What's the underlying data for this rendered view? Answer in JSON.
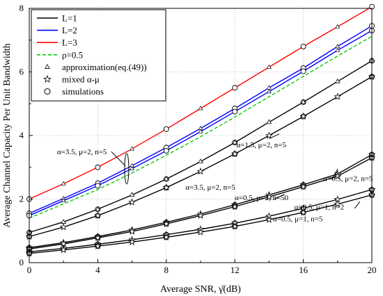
{
  "chart_data": {
    "type": "line",
    "xlabel": "Average SNR, γ̄(dB)",
    "ylabel": "Average Channel Capacity Per Unit Bandwidth",
    "xlim": [
      0,
      20
    ],
    "ylim": [
      0,
      8
    ],
    "xticks": [
      0,
      4,
      8,
      12,
      16,
      20
    ],
    "yticks": [
      0,
      2,
      4,
      6,
      8
    ],
    "grid": true,
    "legend_position": "top-left",
    "legend": [
      {
        "label": "L=1",
        "style": "line",
        "color": "#000000"
      },
      {
        "label": "L=2",
        "style": "line",
        "color": "#0000ff"
      },
      {
        "label": "L=3",
        "style": "line",
        "color": "#ff0000"
      },
      {
        "label": "ρ=0.5",
        "style": "dashed",
        "color": "#00cc00"
      },
      {
        "label": "approximation(eq.(49))",
        "style": "triangle",
        "color": "#000000"
      },
      {
        "label": "mixed α-μ",
        "style": "star",
        "color": "#000000"
      },
      {
        "label": "simulations",
        "style": "circle",
        "color": "#000000"
      }
    ],
    "x": [
      0,
      2,
      4,
      6,
      8,
      10,
      12,
      14,
      16,
      18,
      20
    ],
    "series": [
      {
        "group": "α=3.5, μ=2, n=5",
        "L": 3,
        "color": "#ff0000",
        "dash": false,
        "y": [
          2.0,
          2.48,
          3.0,
          3.58,
          4.2,
          4.85,
          5.5,
          6.15,
          6.8,
          7.42,
          8.05
        ]
      },
      {
        "group": "α=3.5, μ=2, n=5",
        "L": 2,
        "color": "#0000ff",
        "dash": false,
        "y": [
          1.55,
          2.02,
          2.5,
          3.05,
          3.62,
          4.22,
          4.85,
          5.5,
          6.12,
          6.8,
          7.45
        ]
      },
      {
        "group": "α=3.5, μ=2, n=5",
        "L": 2,
        "color": "#0000ff",
        "dash": false,
        "y": [
          1.48,
          1.95,
          2.42,
          2.96,
          3.52,
          4.12,
          4.75,
          5.38,
          6.02,
          6.68,
          7.3
        ]
      },
      {
        "group": "α=3.5, μ=2, n=5",
        "L": 2,
        "color": "#00cc00",
        "dash": true,
        "y": [
          1.4,
          1.85,
          2.3,
          2.82,
          3.38,
          3.96,
          4.58,
          5.22,
          5.86,
          6.5,
          7.12
        ]
      },
      {
        "group": "α=1.5, μ=2, n=5",
        "L": 1,
        "color": "#000000",
        "dash": false,
        "y": [
          0.95,
          1.28,
          1.68,
          2.13,
          2.63,
          3.18,
          3.78,
          4.42,
          5.05,
          5.7,
          6.35
        ]
      },
      {
        "group": "α=3.5, μ=2, n=5",
        "L": 1,
        "color": "#000000",
        "dash": false,
        "y": [
          0.82,
          1.12,
          1.48,
          1.9,
          2.36,
          2.87,
          3.42,
          4.0,
          4.6,
          5.22,
          5.85
        ]
      },
      {
        "group": "α=0.5, μ=2, n=5",
        "L": 1,
        "color": "#000000",
        "dash": false,
        "y": [
          0.47,
          0.63,
          0.82,
          1.03,
          1.27,
          1.53,
          1.82,
          2.13,
          2.45,
          2.79,
          3.4
        ]
      },
      {
        "group": "α=0.5, μ=2, n=50",
        "L": 1,
        "color": "#000000",
        "dash": false,
        "y": [
          0.43,
          0.59,
          0.78,
          0.98,
          1.22,
          1.48,
          1.76,
          2.07,
          2.39,
          2.72,
          3.3
        ]
      },
      {
        "group": "α=0.5, μ=1, n=2",
        "L": 1,
        "color": "#000000",
        "dash": false,
        "y": [
          0.34,
          0.45,
          0.58,
          0.72,
          0.88,
          1.05,
          1.24,
          1.46,
          1.71,
          1.99,
          2.3
        ]
      },
      {
        "group": "α=0.5, μ=1, n=5",
        "L": 1,
        "color": "#000000",
        "dash": false,
        "y": [
          0.29,
          0.4,
          0.52,
          0.65,
          0.8,
          0.96,
          1.14,
          1.35,
          1.58,
          1.84,
          2.13
        ]
      }
    ],
    "annotations": [
      {
        "text": "α=3.5, μ=2, n=5",
        "at": [
          5.2,
          3.1
        ]
      },
      {
        "text": "α=1.5, μ=2, n=5",
        "at": [
          13.8,
          3.8
        ]
      },
      {
        "text": "α=3.5, μ=2, n=5",
        "at": [
          9.2,
          2.3
        ]
      },
      {
        "text": "α=0.5, μ=2, n=50",
        "at": [
          13.7,
          2.03
        ]
      },
      {
        "text": "α=0.5, μ=2, n=5",
        "at": [
          17.4,
          2.57
        ]
      },
      {
        "text": "α=0.5, μ=1, n=2",
        "at": [
          18.4,
          1.67
        ]
      },
      {
        "text": "α=0.5, μ=1, n=5",
        "at": [
          15.2,
          1.3
        ]
      }
    ]
  }
}
